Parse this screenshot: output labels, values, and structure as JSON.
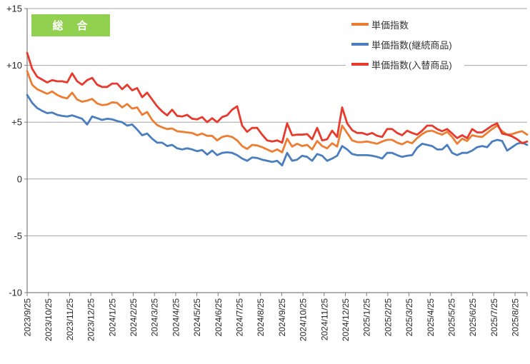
{
  "badge": {
    "label": "総　合",
    "bg": "#92D050",
    "text_color": "#FFFFFF"
  },
  "chart_data": {
    "type": "line",
    "title": "総合",
    "xlabel": "",
    "ylabel": "",
    "ylim": [
      -10,
      15
    ],
    "grid": true,
    "legend_position": "top-right-inside",
    "y_ticks": [
      {
        "label": "+15",
        "value": 15
      },
      {
        "label": "+10",
        "value": 10
      },
      {
        "label": "+5",
        "value": 5
      },
      {
        "label": "0",
        "value": 0
      },
      {
        "label": "-5",
        "value": -5
      },
      {
        "label": "-10",
        "value": -10
      }
    ],
    "x_tick_labels": [
      "2023/9/25",
      "2023/10/25",
      "2023/11/25",
      "2023/12/25",
      "2024/1/25",
      "2024/2/25",
      "2024/3/25",
      "2024/4/25",
      "2024/5/25",
      "2024/6/25",
      "2024/7/25",
      "2024/8/25",
      "2024/9/25",
      "2024/10/25",
      "2024/11/25",
      "2024/12/25",
      "2025/1/25",
      "2025/2/25",
      "2025/3/25",
      "2025/4/25",
      "2025/5/25",
      "2025/6/25",
      "2025/7/25",
      "2025/8/25"
    ],
    "x_resolution": "weekly",
    "series": [
      {
        "name": "単価指数",
        "color": "#ED7D31",
        "values": [
          9.5,
          8.3,
          7.9,
          7.7,
          7.5,
          7.7,
          7.4,
          7.2,
          7.1,
          7.6,
          7.0,
          6.8,
          6.9,
          7.05,
          6.65,
          6.5,
          6.55,
          6.75,
          6.7,
          6.3,
          6.6,
          6.2,
          6.3,
          5.65,
          5.9,
          5.2,
          4.75,
          4.55,
          4.4,
          4.45,
          4.2,
          4.15,
          4.1,
          4.05,
          3.85,
          4.0,
          3.8,
          3.8,
          3.4,
          3.7,
          3.8,
          3.7,
          3.4,
          2.9,
          2.65,
          3.0,
          2.95,
          2.8,
          2.6,
          2.4,
          2.6,
          2.35,
          3.55,
          2.85,
          3.1,
          2.9,
          3.0,
          2.6,
          3.35,
          2.9,
          2.7,
          3.15,
          2.85,
          4.7,
          4.05,
          3.4,
          3.25,
          3.25,
          3.3,
          3.2,
          3.1,
          3.3,
          3.45,
          3.45,
          3.2,
          3.05,
          3.3,
          3.15,
          3.6,
          3.95,
          4.2,
          4.25,
          4.05,
          3.9,
          4.15,
          3.7,
          3.1,
          3.55,
          3.35,
          3.85,
          3.75,
          3.7,
          4.05,
          4.4,
          4.7,
          4.2,
          3.9,
          3.95,
          4.1,
          4.2,
          3.9
        ]
      },
      {
        "name": "単価指数(継続商品)",
        "color": "#4A7EBE",
        "values": [
          7.4,
          6.7,
          6.25,
          6.0,
          5.8,
          5.85,
          5.65,
          5.55,
          5.5,
          5.6,
          5.45,
          5.3,
          4.8,
          5.5,
          5.35,
          5.2,
          5.3,
          5.25,
          5.1,
          5.0,
          4.7,
          4.8,
          4.35,
          3.85,
          4.0,
          3.55,
          3.2,
          3.2,
          2.9,
          3.0,
          2.7,
          2.6,
          2.7,
          2.6,
          2.45,
          2.55,
          2.15,
          2.5,
          2.1,
          2.3,
          2.35,
          2.3,
          2.1,
          1.8,
          1.6,
          1.9,
          1.85,
          1.7,
          1.6,
          1.5,
          1.6,
          1.2,
          2.3,
          1.6,
          1.7,
          2.05,
          1.95,
          1.6,
          2.2,
          2.05,
          1.6,
          1.8,
          2.05,
          2.9,
          2.6,
          2.2,
          2.1,
          2.1,
          2.1,
          2.05,
          1.95,
          1.8,
          2.3,
          2.3,
          2.1,
          1.95,
          2.05,
          2.1,
          2.75,
          3.1,
          3.0,
          2.9,
          2.6,
          2.6,
          3.0,
          2.3,
          2.1,
          2.3,
          2.3,
          2.5,
          2.8,
          2.9,
          2.8,
          3.3,
          3.45,
          3.35,
          2.5,
          2.8,
          3.1,
          3.2,
          3.0
        ]
      },
      {
        "name": "単価指数(入替商品)",
        "color": "#E8392D",
        "values": [
          11.1,
          9.7,
          9.0,
          8.75,
          8.5,
          8.7,
          8.6,
          8.6,
          8.5,
          9.3,
          8.6,
          8.3,
          8.7,
          8.9,
          8.3,
          8.1,
          8.1,
          8.4,
          8.4,
          7.9,
          8.3,
          7.8,
          8.0,
          7.2,
          7.6,
          7.0,
          6.4,
          5.95,
          5.6,
          6.1,
          5.55,
          5.5,
          5.65,
          5.3,
          5.25,
          5.45,
          5.0,
          5.35,
          5.0,
          5.45,
          5.6,
          6.1,
          6.4,
          4.7,
          4.15,
          4.5,
          4.5,
          3.9,
          3.4,
          3.3,
          3.4,
          3.2,
          4.9,
          3.85,
          3.9,
          3.9,
          3.95,
          3.5,
          4.5,
          3.4,
          3.5,
          4.25,
          3.7,
          6.3,
          4.9,
          4.3,
          4.05,
          4.05,
          3.9,
          4.05,
          3.8,
          3.7,
          4.4,
          4.4,
          4.05,
          3.85,
          4.25,
          4.05,
          3.9,
          4.25,
          4.7,
          4.7,
          4.4,
          4.2,
          4.4,
          4.0,
          3.6,
          3.85,
          3.6,
          4.4,
          4.1,
          4.1,
          4.4,
          4.7,
          4.9,
          4.0,
          3.9,
          3.75,
          3.5,
          3.15,
          3.3
        ]
      }
    ],
    "style": {
      "gridline_color": "#A6A6A6",
      "axis_color": "#7F7F7F",
      "tick_label_color": "#262626"
    }
  }
}
